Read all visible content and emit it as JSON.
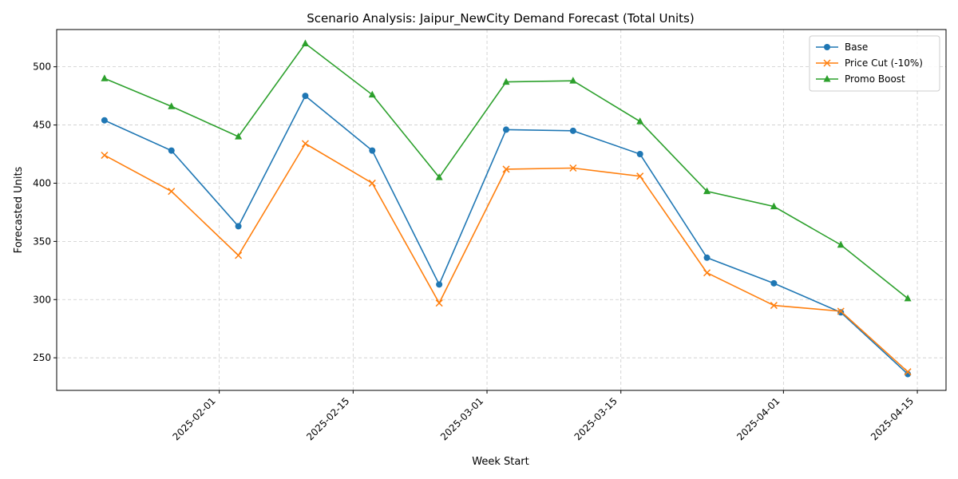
{
  "chart_data": {
    "type": "line",
    "title": "Scenario Analysis: Jaipur_NewCity Demand Forecast (Total Units)",
    "xlabel": "Week Start",
    "ylabel": "Forecasted Units",
    "x": [
      "2025-01-20",
      "2025-01-27",
      "2025-02-03",
      "2025-02-10",
      "2025-02-17",
      "2025-02-24",
      "2025-03-03",
      "2025-03-10",
      "2025-03-17",
      "2025-03-24",
      "2025-03-31",
      "2025-04-07",
      "2025-04-14"
    ],
    "x_ticks": [
      "2025-02-01",
      "2025-02-15",
      "2025-03-01",
      "2025-03-15",
      "2025-04-01",
      "2025-04-15"
    ],
    "xlim": [
      "2025-01-15",
      "2025-04-18"
    ],
    "y_ticks": [
      250,
      300,
      350,
      400,
      450,
      500
    ],
    "ylim": [
      222,
      532
    ],
    "grid": true,
    "legend_position": "top-right",
    "series": [
      {
        "name": "Base",
        "color": "#1f77b4",
        "marker": "circle",
        "values": [
          454,
          428,
          363,
          475,
          428,
          313,
          446,
          445,
          425,
          336,
          314,
          289,
          236
        ]
      },
      {
        "name": "Price Cut (-10%)",
        "color": "#ff7f0e",
        "marker": "x",
        "values": [
          424,
          393,
          338,
          434,
          400,
          297,
          412,
          413,
          406,
          323,
          295,
          290,
          238
        ]
      },
      {
        "name": "Promo Boost",
        "color": "#2ca02c",
        "marker": "triangle",
        "values": [
          490,
          466,
          440,
          520,
          476,
          405,
          487,
          488,
          453,
          393,
          380,
          347,
          301
        ]
      }
    ]
  }
}
